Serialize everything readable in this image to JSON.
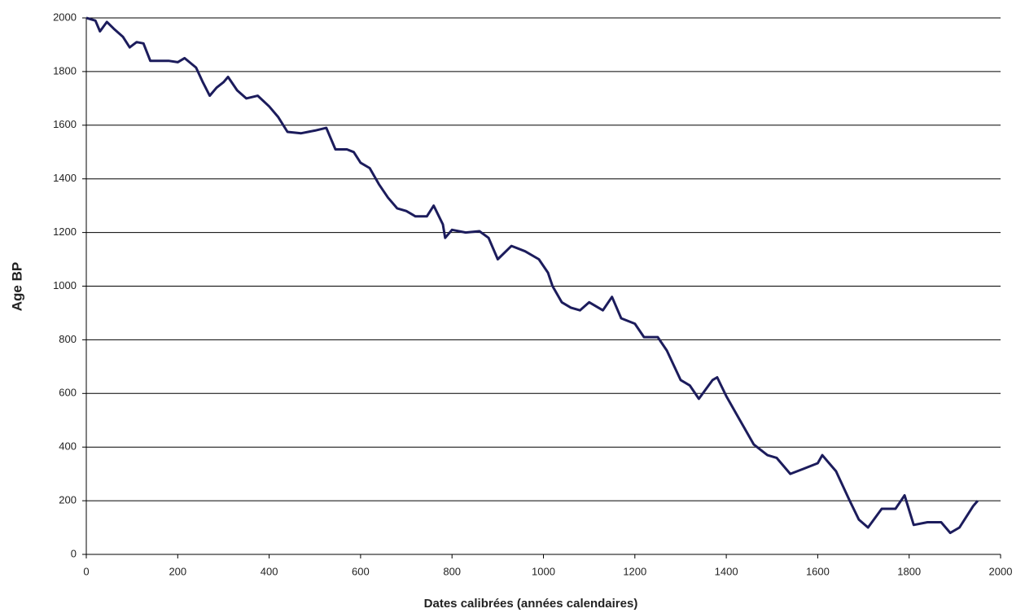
{
  "chart_data": {
    "type": "line",
    "x_label": "Dates  calibrées (années calendaires)",
    "y_label": "Age BP",
    "x": [
      0,
      20,
      30,
      45,
      60,
      80,
      95,
      110,
      125,
      140,
      180,
      200,
      215,
      240,
      255,
      270,
      285,
      300,
      310,
      330,
      350,
      375,
      400,
      420,
      440,
      470,
      500,
      525,
      545,
      570,
      585,
      600,
      620,
      640,
      660,
      680,
      700,
      720,
      745,
      760,
      780,
      785,
      800,
      830,
      860,
      880,
      900,
      930,
      960,
      990,
      1010,
      1020,
      1040,
      1060,
      1080,
      1100,
      1130,
      1150,
      1170,
      1200,
      1220,
      1250,
      1270,
      1300,
      1320,
      1340,
      1370,
      1380,
      1400,
      1430,
      1460,
      1490,
      1510,
      1540,
      1570,
      1600,
      1610,
      1640,
      1670,
      1690,
      1710,
      1740,
      1770,
      1790,
      1810,
      1840,
      1870,
      1890,
      1910,
      1940,
      1950
    ],
    "values": [
      2000,
      1990,
      1950,
      1985,
      1960,
      1930,
      1890,
      1910,
      1905,
      1840,
      1840,
      1835,
      1850,
      1815,
      1760,
      1710,
      1740,
      1760,
      1780,
      1730,
      1700,
      1710,
      1670,
      1630,
      1575,
      1570,
      1580,
      1590,
      1510,
      1510,
      1500,
      1460,
      1440,
      1380,
      1330,
      1290,
      1280,
      1260,
      1260,
      1300,
      1230,
      1180,
      1210,
      1200,
      1205,
      1180,
      1100,
      1150,
      1130,
      1100,
      1050,
      1000,
      940,
      920,
      910,
      940,
      910,
      960,
      880,
      860,
      810,
      810,
      760,
      650,
      630,
      580,
      650,
      660,
      590,
      500,
      410,
      370,
      360,
      300,
      320,
      340,
      370,
      310,
      200,
      130,
      100,
      170,
      170,
      220,
      110,
      120,
      120,
      80,
      100,
      180,
      200
    ],
    "color": "#1c1c5c",
    "xlim": [
      0,
      2000
    ],
    "xticks": [
      0,
      200,
      400,
      600,
      800,
      1000,
      1200,
      1400,
      1600,
      1800,
      2000
    ],
    "ylim": [
      0,
      2000
    ],
    "yticks": [
      0,
      200,
      400,
      600,
      800,
      1000,
      1200,
      1400,
      1600,
      1800,
      2000
    ],
    "grid": true
  }
}
